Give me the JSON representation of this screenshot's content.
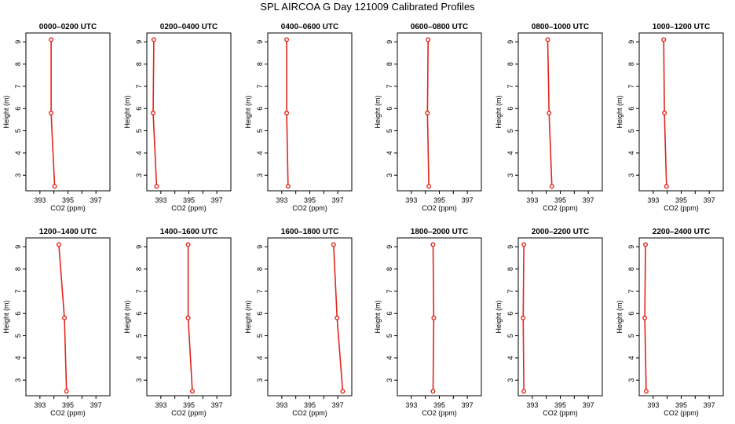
{
  "figure_title": "SPL AIRCOA G  Day 121009  Calibrated Profiles",
  "chart_data": [
    {
      "type": "line",
      "title": "0000–0200 UTC",
      "xlabel": "CO2 (ppm)",
      "ylabel": "Height (m)",
      "xlim": [
        392,
        398
      ],
      "ylim": [
        2.3,
        9.4
      ],
      "x_ticks": [
        393,
        394,
        395,
        396,
        397
      ],
      "x_tick_labels": [
        "393",
        "",
        "395",
        "",
        "397"
      ],
      "y_ticks": [
        3,
        4,
        5,
        6,
        7,
        8,
        9
      ],
      "grid": false,
      "points": [
        {
          "x": 393.8,
          "y": 9.1
        },
        {
          "x": 393.8,
          "y": 5.8
        },
        {
          "x": 394.05,
          "y": 2.5
        }
      ]
    },
    {
      "type": "line",
      "title": "0200–0400 UTC",
      "xlabel": "CO2 (ppm)",
      "ylabel": "Height (m)",
      "xlim": [
        392,
        398
      ],
      "ylim": [
        2.3,
        9.4
      ],
      "x_ticks": [
        393,
        394,
        395,
        396,
        397
      ],
      "x_tick_labels": [
        "393",
        "",
        "395",
        "",
        "397"
      ],
      "y_ticks": [
        3,
        4,
        5,
        6,
        7,
        8,
        9
      ],
      "grid": false,
      "points": [
        {
          "x": 392.5,
          "y": 9.1
        },
        {
          "x": 392.45,
          "y": 5.8
        },
        {
          "x": 392.7,
          "y": 2.5
        }
      ]
    },
    {
      "type": "line",
      "title": "0400–0600 UTC",
      "xlabel": "CO2 (ppm)",
      "ylabel": "Height (m)",
      "xlim": [
        392,
        398
      ],
      "ylim": [
        2.3,
        9.4
      ],
      "x_ticks": [
        393,
        394,
        395,
        396,
        397
      ],
      "x_tick_labels": [
        "393",
        "",
        "395",
        "",
        "397"
      ],
      "y_ticks": [
        3,
        4,
        5,
        6,
        7,
        8,
        9
      ],
      "grid": false,
      "points": [
        {
          "x": 393.35,
          "y": 9.1
        },
        {
          "x": 393.35,
          "y": 5.8
        },
        {
          "x": 393.45,
          "y": 2.5
        }
      ]
    },
    {
      "type": "line",
      "title": "0600–0800 UTC",
      "xlabel": "CO2 (ppm)",
      "ylabel": "Height (m)",
      "xlim": [
        392,
        398
      ],
      "ylim": [
        2.3,
        9.4
      ],
      "x_ticks": [
        393,
        394,
        395,
        396,
        397
      ],
      "x_tick_labels": [
        "393",
        "",
        "395",
        "",
        "397"
      ],
      "y_ticks": [
        3,
        4,
        5,
        6,
        7,
        8,
        9
      ],
      "grid": false,
      "points": [
        {
          "x": 394.2,
          "y": 9.1
        },
        {
          "x": 394.15,
          "y": 5.8
        },
        {
          "x": 394.25,
          "y": 2.5
        }
      ]
    },
    {
      "type": "line",
      "title": "0800–1000 UTC",
      "xlabel": "CO2 (ppm)",
      "ylabel": "Height (m)",
      "xlim": [
        392,
        398
      ],
      "ylim": [
        2.3,
        9.4
      ],
      "x_ticks": [
        393,
        394,
        395,
        396,
        397
      ],
      "x_tick_labels": [
        "393",
        "",
        "395",
        "",
        "397"
      ],
      "y_ticks": [
        3,
        4,
        5,
        6,
        7,
        8,
        9
      ],
      "grid": false,
      "points": [
        {
          "x": 394.1,
          "y": 9.1
        },
        {
          "x": 394.2,
          "y": 5.8
        },
        {
          "x": 394.4,
          "y": 2.5
        }
      ]
    },
    {
      "type": "line",
      "title": "1000–1200 UTC",
      "xlabel": "CO2 (ppm)",
      "ylabel": "Height (m)",
      "xlim": [
        392,
        398
      ],
      "ylim": [
        2.3,
        9.4
      ],
      "x_ticks": [
        393,
        394,
        395,
        396,
        397
      ],
      "x_tick_labels": [
        "393",
        "",
        "395",
        "",
        "397"
      ],
      "y_ticks": [
        3,
        4,
        5,
        6,
        7,
        8,
        9
      ],
      "grid": false,
      "points": [
        {
          "x": 393.75,
          "y": 9.1
        },
        {
          "x": 393.8,
          "y": 5.8
        },
        {
          "x": 393.95,
          "y": 2.5
        }
      ]
    },
    {
      "type": "line",
      "title": "1200–1400 UTC",
      "xlabel": "CO2 (ppm)",
      "ylabel": "Height (m)",
      "xlim": [
        392,
        398
      ],
      "ylim": [
        2.3,
        9.4
      ],
      "x_ticks": [
        393,
        394,
        395,
        396,
        397
      ],
      "x_tick_labels": [
        "393",
        "",
        "395",
        "",
        "397"
      ],
      "y_ticks": [
        3,
        4,
        5,
        6,
        7,
        8,
        9
      ],
      "grid": false,
      "points": [
        {
          "x": 394.35,
          "y": 9.1
        },
        {
          "x": 394.75,
          "y": 5.8
        },
        {
          "x": 394.9,
          "y": 2.5
        }
      ]
    },
    {
      "type": "line",
      "title": "1400–1600 UTC",
      "xlabel": "CO2 (ppm)",
      "ylabel": "Height (m)",
      "xlim": [
        392,
        398
      ],
      "ylim": [
        2.3,
        9.4
      ],
      "x_ticks": [
        393,
        394,
        395,
        396,
        397
      ],
      "x_tick_labels": [
        "393",
        "",
        "395",
        "",
        "397"
      ],
      "y_ticks": [
        3,
        4,
        5,
        6,
        7,
        8,
        9
      ],
      "grid": false,
      "points": [
        {
          "x": 394.95,
          "y": 9.1
        },
        {
          "x": 394.95,
          "y": 5.8
        },
        {
          "x": 395.25,
          "y": 2.5
        }
      ]
    },
    {
      "type": "line",
      "title": "1600–1800 UTC",
      "xlabel": "CO2 (ppm)",
      "ylabel": "Height (m)",
      "xlim": [
        392,
        398
      ],
      "ylim": [
        2.3,
        9.4
      ],
      "x_ticks": [
        393,
        394,
        395,
        396,
        397
      ],
      "x_tick_labels": [
        "393",
        "",
        "395",
        "",
        "397"
      ],
      "y_ticks": [
        3,
        4,
        5,
        6,
        7,
        8,
        9
      ],
      "grid": false,
      "points": [
        {
          "x": 396.7,
          "y": 9.1
        },
        {
          "x": 396.95,
          "y": 5.8
        },
        {
          "x": 397.35,
          "y": 2.5
        }
      ]
    },
    {
      "type": "line",
      "title": "1800–2000 UTC",
      "xlabel": "CO2 (ppm)",
      "ylabel": "Height (m)",
      "xlim": [
        392,
        398
      ],
      "ylim": [
        2.3,
        9.4
      ],
      "x_ticks": [
        393,
        394,
        395,
        396,
        397
      ],
      "x_tick_labels": [
        "393",
        "",
        "395",
        "",
        "397"
      ],
      "y_ticks": [
        3,
        4,
        5,
        6,
        7,
        8,
        9
      ],
      "grid": false,
      "points": [
        {
          "x": 394.55,
          "y": 9.1
        },
        {
          "x": 394.6,
          "y": 5.8
        },
        {
          "x": 394.55,
          "y": 2.5
        }
      ]
    },
    {
      "type": "line",
      "title": "2000–2200 UTC",
      "xlabel": "CO2 (ppm)",
      "ylabel": "Height (m)",
      "xlim": [
        392,
        398
      ],
      "ylim": [
        2.3,
        9.4
      ],
      "x_ticks": [
        393,
        394,
        395,
        396,
        397
      ],
      "x_tick_labels": [
        "393",
        "",
        "395",
        "",
        "397"
      ],
      "y_ticks": [
        3,
        4,
        5,
        6,
        7,
        8,
        9
      ],
      "grid": false,
      "points": [
        {
          "x": 392.4,
          "y": 9.1
        },
        {
          "x": 392.35,
          "y": 5.8
        },
        {
          "x": 392.4,
          "y": 2.5
        }
      ]
    },
    {
      "type": "line",
      "title": "2200–2400 UTC",
      "xlabel": "CO2 (ppm)",
      "ylabel": "Height (m)",
      "xlim": [
        392,
        398
      ],
      "ylim": [
        2.3,
        9.4
      ],
      "x_ticks": [
        393,
        394,
        395,
        396,
        397
      ],
      "x_tick_labels": [
        "393",
        "",
        "395",
        "",
        "397"
      ],
      "y_ticks": [
        3,
        4,
        5,
        6,
        7,
        8,
        9
      ],
      "grid": false,
      "points": [
        {
          "x": 392.45,
          "y": 9.1
        },
        {
          "x": 392.4,
          "y": 5.8
        },
        {
          "x": 392.5,
          "y": 2.5
        }
      ]
    }
  ]
}
